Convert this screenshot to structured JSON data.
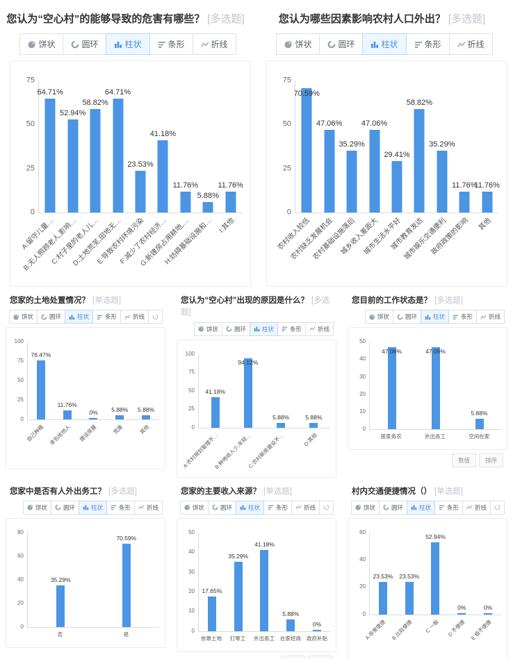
{
  "colors": {
    "bar_fill": "#4b95e4",
    "accent": "#4a90e2",
    "tag_text": "#c0c4cc"
  },
  "toolbar_labels": {
    "pie": "饼状",
    "donut": "圆环",
    "bar": "柱状",
    "hbar": "条形",
    "line": "折线"
  },
  "footer_buttons": {
    "value": "数值",
    "sort": "排序"
  },
  "chart_data": [
    {
      "type": "bar",
      "title": "您认为“空心村”的能够导致的危害有哪些？",
      "tag": "[多选题]",
      "categories": [
        "A:留守儿童…",
        "B:无人照顾老人,影响…",
        "C:村子里的老人儿…",
        "D:土地荒芜,田地无…",
        "E:导致农村环境污染",
        "F:减少了农村经济…",
        "G:新建房占用耕地,…",
        "H:妨碍基础设施和…",
        "I:其他"
      ],
      "values": [
        64.71,
        52.94,
        58.82,
        64.71,
        23.53,
        41.18,
        11.76,
        5.88,
        11.76
      ],
      "value_labels": [
        "64.71%",
        "52.94%",
        "58.82%",
        "64.71%",
        "23.53%",
        "41.18%",
        "11.76%",
        "5.88%",
        "11.76%"
      ],
      "yticks": [
        0,
        25,
        50,
        75
      ],
      "ylim": [
        0,
        75
      ],
      "xlabel_rotate": 45,
      "grid": false,
      "legend": "none",
      "extra_icon": false,
      "footer_visible": false
    },
    {
      "type": "bar",
      "title": "您认为哪些因素影响农村人口外出？",
      "tag": "[多选题]",
      "categories": [
        "农村收入较低",
        "农村缺乏发展机会",
        "农村基础设施落后",
        "城乡收入差距大",
        "城市生活水平好",
        "城市教育发达",
        "城市娱乐交通便利",
        "政府政策的影响",
        "其他"
      ],
      "values": [
        70.59,
        47.06,
        35.29,
        47.06,
        29.41,
        58.82,
        35.29,
        11.76,
        11.76
      ],
      "value_labels": [
        "70.59%",
        "47.06%",
        "35.29%",
        "47.06%",
        "29.41%",
        "58.82%",
        "35.29%",
        "11.76%",
        "11.76%"
      ],
      "yticks": [
        0,
        25,
        50,
        75
      ],
      "ylim": [
        0,
        75
      ],
      "xlabel_rotate": 45,
      "grid": false,
      "legend": "none",
      "extra_icon": false,
      "footer_visible": false
    },
    {
      "type": "bar",
      "title": "您家的土地处置情况？",
      "tag": "[单选题]",
      "categories": [
        "自己种植",
        "承包给他人",
        "建设房屋",
        "荒废",
        "其他"
      ],
      "values": [
        76.47,
        11.76,
        0,
        5.88,
        5.88
      ],
      "value_labels": [
        "76.47%",
        "11.76%",
        "0%",
        "5.88%",
        "5.88%"
      ],
      "yticks": [
        0,
        25,
        50,
        75,
        100
      ],
      "ylim": [
        0,
        100
      ],
      "xlabel_rotate": 45,
      "grid": false,
      "legend": "none",
      "extra_icon": true,
      "footer_visible": false
    },
    {
      "type": "bar",
      "title": "您认为“空心村”出现的原因是什么？",
      "tag": "[多选题]",
      "categories": [
        "A:农村规划管理不…",
        "B:种地收入少,年轻…",
        "C:农村新房建设不…",
        "D:其他"
      ],
      "values": [
        41.18,
        94.12,
        5.88,
        5.88
      ],
      "value_labels": [
        "41.18%",
        "94.12%",
        "5.88%",
        "5.88%"
      ],
      "yticks": [
        0,
        25,
        50,
        75,
        100
      ],
      "ylim": [
        0,
        100
      ],
      "xlabel_rotate": 45,
      "grid": false,
      "legend": "none",
      "extra_icon": false,
      "footer_visible": false
    },
    {
      "type": "bar",
      "title": "您目前的工作状态是？",
      "tag": "[多选题]",
      "categories": [
        "居家务农",
        "外出务工",
        "空闲在家"
      ],
      "values": [
        47.06,
        47.06,
        5.88
      ],
      "value_labels": [
        "47.06%",
        "47.06%",
        "5.88%"
      ],
      "yticks": [
        0,
        10,
        20,
        30,
        40,
        50
      ],
      "ylim": [
        0,
        50
      ],
      "xlabel_rotate": 0,
      "grid": false,
      "legend": "none",
      "extra_icon": false,
      "footer_visible": true
    },
    {
      "type": "bar",
      "title": "您家中是否有人外出务工？",
      "tag": "[多选题]",
      "categories": [
        "否",
        "是"
      ],
      "values": [
        35.29,
        70.59
      ],
      "value_labels": [
        "35.29%",
        "70.59%"
      ],
      "yticks": [
        0,
        20,
        40,
        60,
        80
      ],
      "ylim": [
        0,
        80
      ],
      "xlabel_rotate": 0,
      "grid": false,
      "legend": "none",
      "extra_icon": false,
      "footer_visible": false
    },
    {
      "type": "bar",
      "title": "您家的主要收入来源？",
      "tag": "[单选题]",
      "categories": [
        "依靠土地",
        "打零工",
        "外出务工",
        "在家经商",
        "政府补贴"
      ],
      "values": [
        17.65,
        35.29,
        41.18,
        5.88,
        0
      ],
      "value_labels": [
        "17.65%",
        "35.29%",
        "41.18%",
        "5.88%",
        "0%"
      ],
      "yticks": [
        0,
        10,
        20,
        30,
        40,
        50
      ],
      "ylim": [
        0,
        50
      ],
      "xlabel_rotate": 0,
      "grid": false,
      "legend": "none",
      "extra_icon": true,
      "footer_visible": true
    },
    {
      "type": "bar",
      "title": "村内交通便捷情况（）",
      "tag": "[单选题]",
      "categories": [
        "A 非常便捷",
        "B 比较便捷",
        "C 一般",
        "D 不便捷",
        "E 极不便捷"
      ],
      "values": [
        23.53,
        23.53,
        52.94,
        0,
        0
      ],
      "value_labels": [
        "23.53%",
        "23.53%",
        "52.94%",
        "0%",
        "0%"
      ],
      "yticks": [
        0,
        20,
        40,
        60
      ],
      "ylim": [
        0,
        60
      ],
      "xlabel_rotate": 45,
      "grid": false,
      "legend": "none",
      "extra_icon": true,
      "footer_visible": false
    }
  ]
}
